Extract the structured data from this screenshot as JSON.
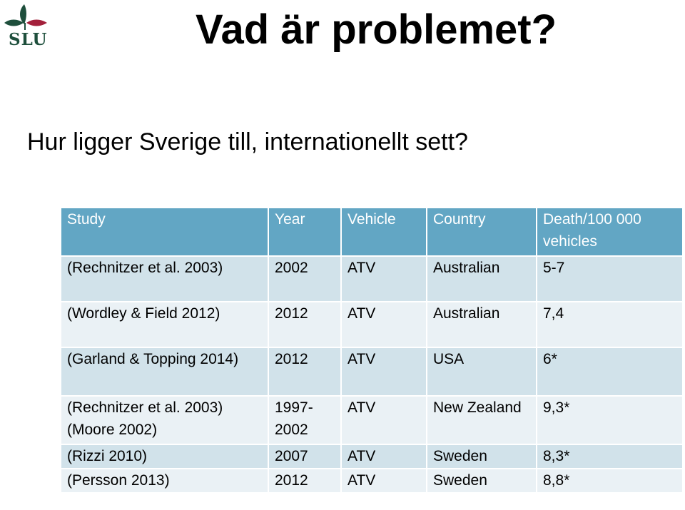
{
  "logo": {
    "text": "SLU"
  },
  "title": "Vad är problemet?",
  "subtitle": "Hur ligger Sverige till, internationellt sett?",
  "table": {
    "headers": [
      "Study",
      "Year",
      "Vehicle",
      "Country",
      "Death/100 000 vehicles"
    ],
    "rows": [
      [
        "(Rechnitzer et al. 2003)",
        "2002",
        "ATV",
        "Australian",
        "5-7"
      ],
      [
        "(Wordley & Field 2012)",
        "2012",
        "ATV",
        "Australian",
        "7,4"
      ],
      [
        "(Garland & Topping 2014)",
        "2012",
        "ATV",
        "USA",
        "6*"
      ],
      [
        "(Rechnitzer et al. 2003)(Moore 2002)",
        "1997-2002",
        "ATV",
        "New Zealand",
        "9,3*"
      ],
      [
        "(Rizzi 2010)",
        "2007",
        "ATV",
        "Sweden",
        "8,3*"
      ],
      [
        "(Persson 2013)",
        "2012",
        "ATV",
        "Sweden",
        "8,8*"
      ]
    ]
  },
  "colors": {
    "header_bg": "#62a6c4",
    "row_dark": "#d1e2ea",
    "row_light": "#eaf1f5",
    "logo_green": "#1e4f3c",
    "logo_red": "#a3203b"
  }
}
